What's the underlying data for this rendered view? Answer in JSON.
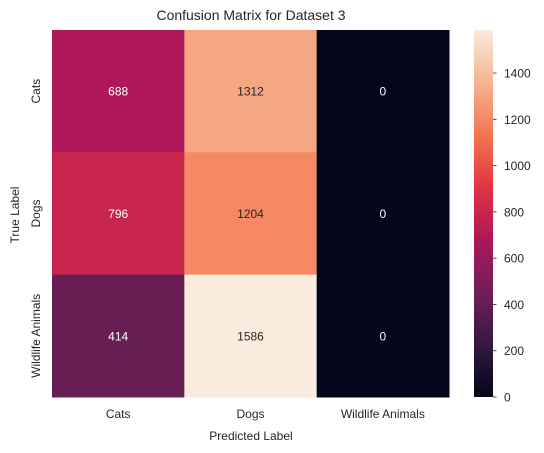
{
  "chart_data": {
    "type": "heatmap",
    "title": "Confusion Matrix for Dataset 3",
    "xlabel": "Predicted Label",
    "ylabel": "True Label",
    "x_categories": [
      "Cats",
      "Dogs",
      "Wildlife Animals"
    ],
    "y_categories": [
      "Cats",
      "Dogs",
      "Wildlife Animals"
    ],
    "values": [
      [
        688,
        1312,
        0
      ],
      [
        796,
        1204,
        0
      ],
      [
        414,
        1586,
        0
      ]
    ],
    "colorbar": {
      "range": [
        0,
        1586
      ],
      "ticks": [
        0,
        200,
        400,
        600,
        800,
        1000,
        1200,
        1400
      ]
    },
    "colormap": [
      "#03051a",
      "#36193e",
      "#701f57",
      "#ad1759",
      "#e13342",
      "#f37651",
      "#f6b48f",
      "#faebdd"
    ],
    "grid": false
  }
}
